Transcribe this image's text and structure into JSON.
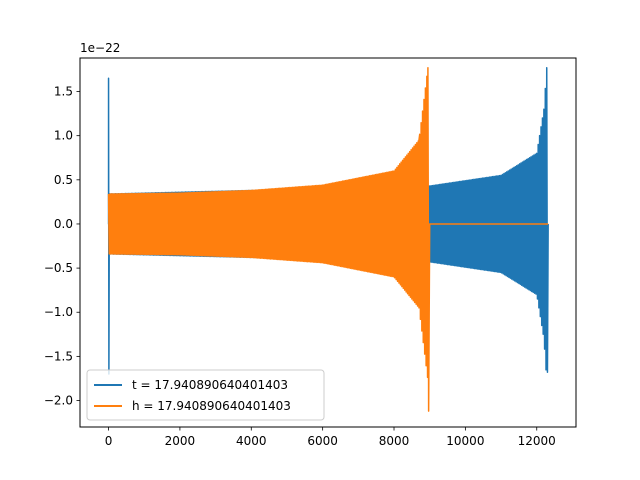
{
  "chart_data": {
    "type": "line",
    "title": "",
    "xlabel": "",
    "ylabel": "",
    "y_offset_label": "1e−22",
    "xlim": [
      -800,
      13100
    ],
    "ylim": [
      -2.3,
      1.88
    ],
    "xticks": [
      0,
      2000,
      4000,
      6000,
      8000,
      10000,
      12000
    ],
    "xtick_labels": [
      "0",
      "2000",
      "4000",
      "6000",
      "8000",
      "10000",
      "12000"
    ],
    "yticks": [
      -2.0,
      -1.5,
      -1.0,
      -0.5,
      0.0,
      0.5,
      1.0,
      1.5
    ],
    "ytick_labels": [
      "−2.0",
      "−1.5",
      "−1.0",
      "−0.5",
      "0.0",
      "0.5",
      "1.0",
      "1.5"
    ],
    "grid": false,
    "legend_position": "lower-left",
    "series": [
      {
        "name": "t = 17.940890640401403",
        "color": "#1f77b4",
        "envelope": [
          [
            0,
            0.0
          ],
          [
            0,
            1.65
          ],
          [
            10,
            -1.7
          ],
          [
            20,
            0.0
          ],
          [
            30,
            0.34
          ],
          [
            9000,
            0.43
          ],
          [
            11000,
            0.55
          ],
          [
            12000,
            0.8
          ],
          [
            12200,
            1.3
          ],
          [
            12280,
            1.77
          ],
          [
            12300,
            -1.68
          ],
          [
            12320,
            0.0
          ]
        ]
      },
      {
        "name": "h = 17.940890640401403",
        "color": "#ff7f0e",
        "envelope": [
          [
            0,
            0.34
          ],
          [
            2000,
            0.35
          ],
          [
            4000,
            0.38
          ],
          [
            6000,
            0.44
          ],
          [
            8000,
            0.6
          ],
          [
            8700,
            0.95
          ],
          [
            8950,
            1.77
          ],
          [
            8970,
            -2.12
          ],
          [
            9000,
            0.0
          ],
          [
            12320,
            0.0
          ]
        ]
      }
    ]
  }
}
